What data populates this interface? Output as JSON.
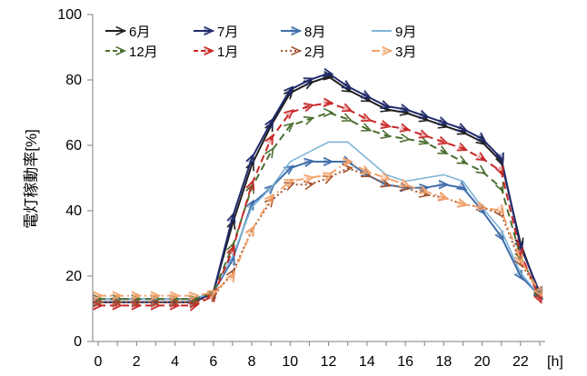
{
  "chart_data": {
    "type": "line",
    "title": "",
    "ylabel": "電灯稼動率[%]",
    "x_unit": "[h]",
    "ylim": [
      0,
      100
    ],
    "y_ticks": [
      0,
      20,
      40,
      60,
      80,
      100
    ],
    "xlim": [
      0,
      23
    ],
    "x_ticks": [
      0,
      2,
      4,
      6,
      8,
      10,
      12,
      14,
      16,
      18,
      20,
      22
    ],
    "grid": false,
    "legend_position": "top",
    "x": [
      0,
      1,
      2,
      3,
      4,
      5,
      6,
      7,
      8,
      9,
      10,
      11,
      12,
      13,
      14,
      15,
      16,
      17,
      18,
      19,
      20,
      21,
      22,
      23
    ],
    "series": [
      {
        "name": "6月",
        "color": "#1f1f1f",
        "marker": "arrow",
        "dash": "solid",
        "values": [
          12,
          12,
          12,
          12,
          12,
          12,
          15,
          36,
          54,
          66,
          76,
          79,
          81,
          77,
          74,
          71,
          70,
          68,
          66,
          64,
          61,
          55,
          30,
          14
        ]
      },
      {
        "name": "7月",
        "color": "#1f2a6b",
        "marker": "double-arrow",
        "dash": "solid",
        "values": [
          12,
          12,
          12,
          12,
          12,
          12,
          15,
          38,
          56,
          67,
          77,
          80,
          82,
          78,
          75,
          72,
          71,
          69,
          67,
          65,
          62,
          56,
          29,
          15
        ]
      },
      {
        "name": "8月",
        "color": "#3f6eaa",
        "marker": "double-arrow",
        "dash": "solid",
        "values": [
          13,
          13,
          13,
          13,
          13,
          13,
          15,
          25,
          42,
          47,
          53,
          55,
          55,
          55,
          51,
          48,
          47,
          47,
          48,
          47,
          40,
          32,
          20,
          14
        ]
      },
      {
        "name": "9月",
        "color": "#7fb4d6",
        "marker": "none",
        "dash": "solid",
        "values": [
          13,
          13,
          13,
          13,
          13,
          13,
          15,
          26,
          41,
          47,
          55,
          58,
          61,
          61,
          56,
          51,
          49,
          50,
          51,
          49,
          41,
          34,
          21,
          14
        ]
      },
      {
        "name": "12月",
        "color": "#4b6e2f",
        "marker": "arrow",
        "dash": "dashed",
        "values": [
          13,
          13,
          13,
          13,
          13,
          13,
          15,
          29,
          47,
          58,
          66,
          68,
          70,
          68,
          65,
          63,
          62,
          61,
          58,
          55,
          52,
          47,
          26,
          14
        ]
      },
      {
        "name": "1月",
        "color": "#c82828",
        "marker": "double-arrow",
        "dash": "dashed",
        "values": [
          11,
          11,
          11,
          11,
          11,
          11,
          14,
          28,
          48,
          62,
          70,
          72,
          73,
          71,
          68,
          66,
          65,
          63,
          61,
          59,
          56,
          52,
          27,
          13
        ]
      },
      {
        "name": "2月",
        "color": "#a4502a",
        "marker": "arrow",
        "dash": "dotted",
        "values": [
          12,
          12,
          12,
          12,
          12,
          12,
          14,
          21,
          34,
          43,
          48,
          48,
          50,
          53,
          51,
          48,
          47,
          45,
          44,
          42,
          41,
          39,
          24,
          15
        ]
      },
      {
        "name": "3月",
        "color": "#f2a26b",
        "marker": "double-arrow",
        "dash": "dashdot",
        "values": [
          14,
          14,
          14,
          14,
          14,
          14,
          15,
          20,
          34,
          44,
          49,
          50,
          51,
          55,
          52,
          50,
          48,
          46,
          44,
          42,
          41,
          40,
          25,
          15
        ]
      }
    ]
  }
}
